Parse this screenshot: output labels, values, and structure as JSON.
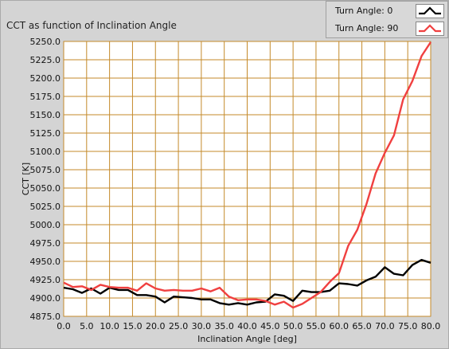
{
  "chart_data": {
    "type": "line",
    "title": "CCT as function of Inclination Angle",
    "xlabel": "Inclination Angle [deg]",
    "ylabel": "CCT [K]",
    "xlim": [
      0,
      80
    ],
    "ylim": [
      4875,
      5250
    ],
    "xticks": [
      "0.0",
      "5.0",
      "10.0",
      "15.0",
      "20.0",
      "25.0",
      "30.0",
      "35.0",
      "40.0",
      "45.0",
      "50.0",
      "55.0",
      "60.0",
      "65.0",
      "70.0",
      "75.0",
      "80.0"
    ],
    "yticks": [
      "4875.0",
      "4900.0",
      "4925.0",
      "4950.0",
      "4975.0",
      "5000.0",
      "5025.0",
      "5050.0",
      "5075.0",
      "5100.0",
      "5125.0",
      "5150.0",
      "5175.0",
      "5200.0",
      "5225.0",
      "5250.0"
    ],
    "grid": true,
    "legend_placement": "top-right",
    "x": [
      0,
      2,
      4,
      6,
      8,
      10,
      12,
      14,
      16,
      18,
      20,
      22,
      24,
      26,
      28,
      30,
      32,
      34,
      36,
      38,
      40,
      42,
      44,
      46,
      48,
      50,
      52,
      54,
      56,
      58,
      60,
      62,
      64,
      66,
      68,
      70,
      72,
      74,
      76,
      78,
      80
    ],
    "series": [
      {
        "name": "Turn Angle:  0",
        "color": "#000000",
        "values": [
          4914,
          4912,
          4907,
          4913,
          4906,
          4914,
          4911,
          4911,
          4904,
          4904,
          4902,
          4894,
          4902,
          4901,
          4900,
          4898,
          4898,
          4893,
          4891,
          4893,
          4891,
          4894,
          4895,
          4905,
          4903,
          4896,
          4910,
          4908,
          4908,
          4910,
          4920,
          4919,
          4917,
          4924,
          4929,
          4942,
          4933,
          4931,
          4945,
          4952,
          4948
        ]
      },
      {
        "name": "Turn Angle:  90",
        "color": "#f04040",
        "values": [
          4921,
          4915,
          4916,
          4911,
          4918,
          4915,
          4914,
          4914,
          4910,
          4920,
          4913,
          4910,
          4911,
          4910,
          4910,
          4913,
          4909,
          4914,
          4902,
          4897,
          4898,
          4898,
          4896,
          4891,
          4895,
          4887,
          4892,
          4900,
          4908,
          4922,
          4934,
          4971,
          4993,
          5028,
          5070,
          5098,
          5122,
          5171,
          5196,
          5230,
          5249
        ]
      }
    ]
  }
}
